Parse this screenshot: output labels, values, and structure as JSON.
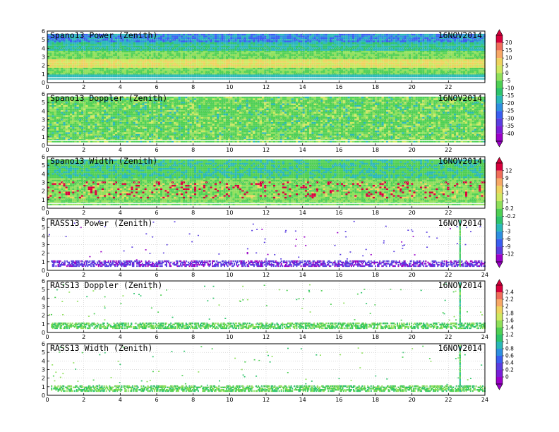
{
  "chart_data": [
    {
      "type": "heatmap",
      "title": "Spano13 Power (Zenith)",
      "date": "16NOV2014",
      "xlim": [
        0,
        24
      ],
      "ylim": [
        0,
        6
      ],
      "xticks": [
        0,
        2,
        4,
        6,
        8,
        10,
        12,
        14,
        16,
        18,
        20,
        22
      ],
      "yticks": [
        0,
        1,
        2,
        3,
        4,
        5,
        6
      ],
      "fill_top": 5.5,
      "colorbar": "A",
      "bands": [
        {
          "y": [
            0.5,
            0.8
          ],
          "level": "cyan"
        },
        {
          "y": [
            1.6,
            2.6
          ],
          "level": "yellow"
        },
        {
          "y": [
            4.5,
            5.5
          ],
          "level": "blue"
        }
      ]
    },
    {
      "type": "heatmap",
      "title": "Spano13 Doppler (Zenith)",
      "date": "16NOV2014",
      "xlim": [
        0,
        24
      ],
      "ylim": [
        0,
        6
      ],
      "xticks": [
        0,
        2,
        4,
        6,
        8,
        10,
        12,
        14,
        16,
        18,
        20,
        22
      ],
      "yticks": [
        0,
        1,
        2,
        3,
        4,
        5,
        6
      ],
      "fill_top": 5.5,
      "colorbar": "A",
      "bands": [
        {
          "y": [
            0.3,
            2.0
          ],
          "level": "mixed"
        }
      ]
    },
    {
      "type": "heatmap",
      "title": "Spano13 Width (Zenith)",
      "date": "16NOV2014",
      "xlim": [
        0,
        24
      ],
      "ylim": [
        0,
        6
      ],
      "xticks": [
        0,
        2,
        4,
        6,
        8,
        10,
        12,
        14,
        16,
        18,
        20,
        22
      ],
      "yticks": [
        0,
        1,
        2,
        3,
        4,
        5,
        6
      ],
      "fill_top": 5.6,
      "colorbar": "B",
      "bands": [
        {
          "y": [
            1.0,
            3.0
          ],
          "level": "red"
        }
      ]
    },
    {
      "type": "heatmap",
      "title": "RASS13 Power (Zenith)",
      "date": "16NOV2014",
      "xlim": [
        0,
        24
      ],
      "ylim": [
        0,
        6
      ],
      "xticks": [
        0,
        2,
        4,
        6,
        8,
        10,
        12,
        14,
        16,
        18,
        20,
        22,
        24
      ],
      "yticks": [
        0,
        1,
        2,
        3,
        4,
        5,
        6
      ],
      "colorbar": "B",
      "bands": [
        {
          "y": [
            0.4,
            1.1
          ],
          "level": "purple"
        }
      ],
      "spike_x": 22.6
    },
    {
      "type": "heatmap",
      "title": "RASS13 Doppler (Zenith)",
      "date": "16NOV2014",
      "xlim": [
        0,
        24
      ],
      "ylim": [
        0,
        6
      ],
      "xticks": [
        0,
        2,
        4,
        6,
        8,
        10,
        12,
        14,
        16,
        18,
        20,
        22,
        24
      ],
      "yticks": [
        0,
        1,
        2,
        3,
        4,
        5,
        6
      ],
      "colorbar": "C",
      "bands": [
        {
          "y": [
            0.4,
            1.1
          ],
          "level": "green"
        }
      ],
      "spike_x": 22.6
    },
    {
      "type": "heatmap",
      "title": "RASS13 Width (Zenith)",
      "date": "16NOV2014",
      "xlim": [
        0,
        24
      ],
      "ylim": [
        0,
        6
      ],
      "xticks": [
        0,
        2,
        4,
        6,
        8,
        10,
        12,
        14,
        16,
        18,
        20,
        22,
        24
      ],
      "yticks": [
        0,
        1,
        2,
        3,
        4,
        5,
        6
      ],
      "colorbar": "C",
      "bands": [
        {
          "y": [
            0.4,
            1.1
          ],
          "level": "green"
        }
      ],
      "spike_x": 22.6
    }
  ],
  "colorbars": {
    "A": {
      "labels": [
        "20",
        "15",
        "10",
        "5",
        "0",
        "-5",
        "-10",
        "-15",
        "-20",
        "-25",
        "-30",
        "-35",
        "-40"
      ],
      "colors": [
        "#d8003c",
        "#f06e5a",
        "#f7a866",
        "#eed35e",
        "#cfe860",
        "#8fe05a",
        "#4fd054",
        "#2dc46c",
        "#2ab8b8",
        "#2e8fe0",
        "#3a5ef0",
        "#5a3ee0",
        "#7a1ed8",
        "#9b00c8"
      ]
    },
    "B": {
      "labels": [
        "12",
        "9",
        "6",
        "3",
        "1",
        "0.2",
        "-0.2",
        "-1",
        "-3",
        "-6",
        "-9",
        "-12"
      ],
      "colors": [
        "#d8003c",
        "#f06e5a",
        "#f7a866",
        "#eed35e",
        "#cfe860",
        "#8fe05a",
        "#4fd054",
        "#2dc46c",
        "#2ab8b8",
        "#2e8fe0",
        "#3a5ef0",
        "#5a3ee0",
        "#9b00c8"
      ]
    },
    "C": {
      "labels": [
        "2.4",
        "2.2",
        "2",
        "1.8",
        "1.6",
        "1.4",
        "1.2",
        "1",
        "0.8",
        "0.6",
        "0.4",
        "0.2",
        "0"
      ],
      "colors": [
        "#d8003c",
        "#f06e5a",
        "#f7a866",
        "#eed35e",
        "#cfe860",
        "#8fe05a",
        "#4fd054",
        "#2dc46c",
        "#2ab8b8",
        "#2e8fe0",
        "#3a5ef0",
        "#5a3ee0",
        "#7a1ed8",
        "#9b00c8"
      ]
    }
  }
}
